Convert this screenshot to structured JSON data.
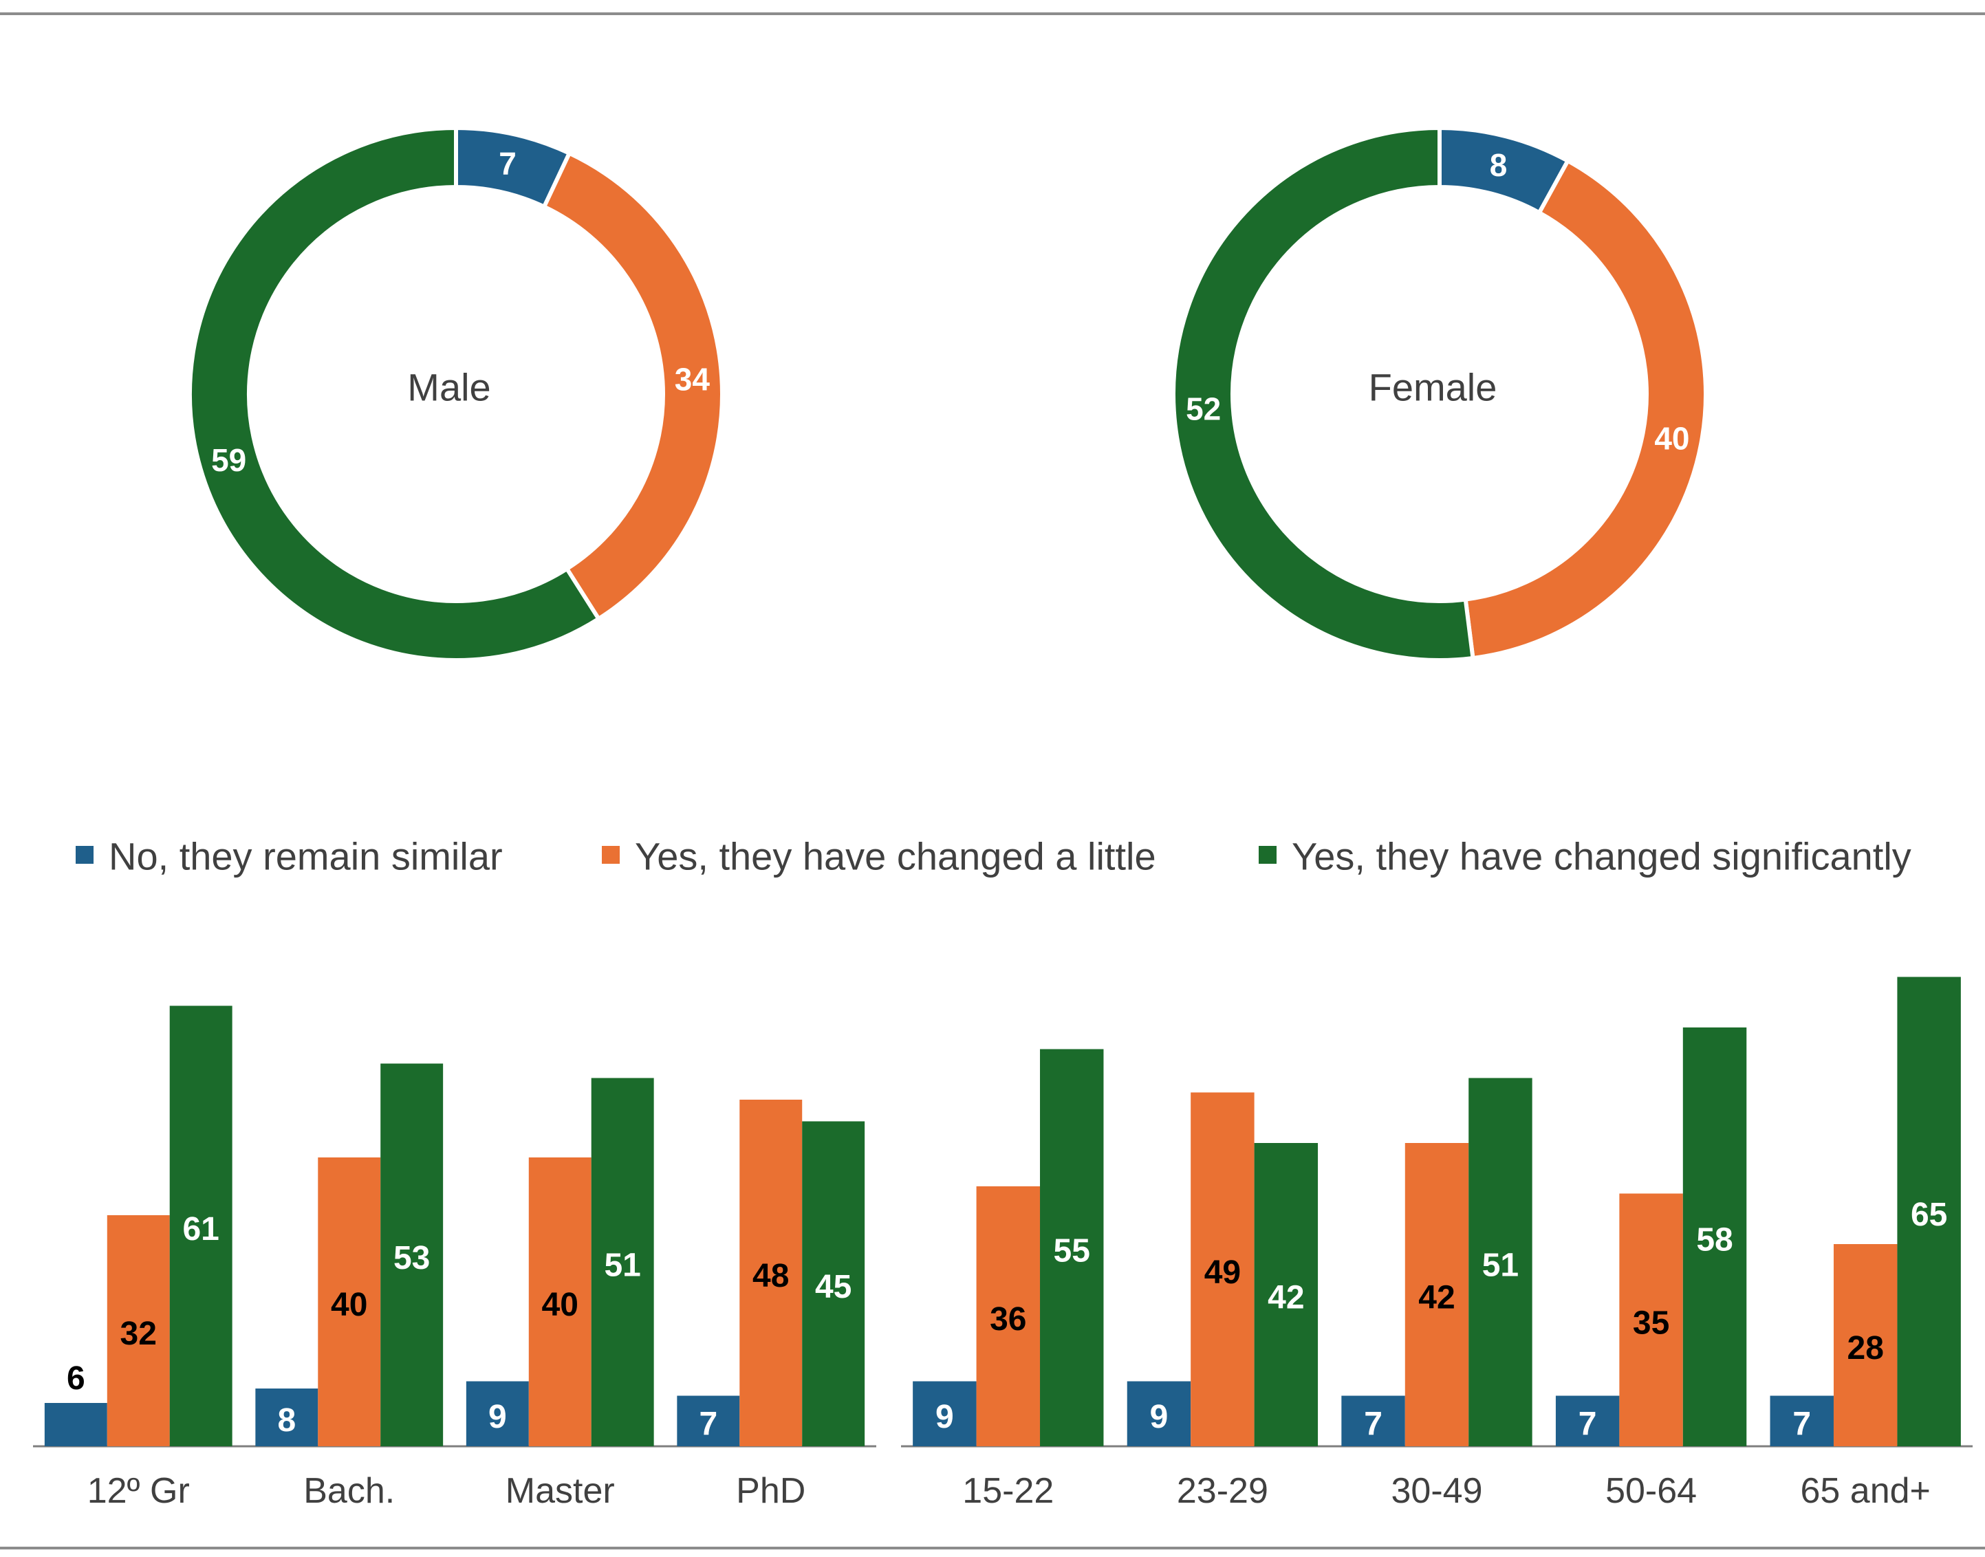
{
  "colors": {
    "no_similar": "#1f5f8b",
    "changed_little": "#ea7133",
    "changed_significantly": "#1b6b2b",
    "text_dark": "#000000",
    "text_light": "#ffffff",
    "axis": "#7f7f7f"
  },
  "legend": [
    {
      "label": "No, they remain similar",
      "color_key": "no_similar"
    },
    {
      "label": "Yes, they have changed a little",
      "color_key": "changed_little"
    },
    {
      "label": "Yes, they have changed significantly",
      "color_key": "changed_significantly"
    }
  ],
  "chart_data": [
    {
      "type": "pie",
      "variant": "donut",
      "title": "Male",
      "slices": [
        {
          "label": "No, they remain similar",
          "value": 7
        },
        {
          "label": "Yes, they have changed a little",
          "value": 34
        },
        {
          "label": "Yes, they have changed significantly",
          "value": 59
        }
      ]
    },
    {
      "type": "pie",
      "variant": "donut",
      "title": "Female",
      "slices": [
        {
          "label": "No, they remain similar",
          "value": 8
        },
        {
          "label": "Yes, they have changed a little",
          "value": 40
        },
        {
          "label": "Yes, they have changed significantly",
          "value": 52
        }
      ]
    },
    {
      "type": "bar",
      "title": "",
      "categories": [
        "12º Gr",
        "Bach.",
        "Master",
        "PhD"
      ],
      "series": [
        {
          "name": "No, they remain similar",
          "values": [
            6,
            8,
            9,
            7
          ]
        },
        {
          "name": "Yes, they have changed a little",
          "values": [
            32,
            40,
            40,
            48
          ]
        },
        {
          "name": "Yes, they have changed significantly",
          "values": [
            61,
            53,
            51,
            45
          ]
        }
      ],
      "ylim": [
        0,
        68
      ]
    },
    {
      "type": "bar",
      "title": "",
      "categories": [
        "15-22",
        "23-29",
        "30-49",
        "50-64",
        "65 and+"
      ],
      "series": [
        {
          "name": "No, they remain similar",
          "values": [
            9,
            9,
            7,
            7,
            7
          ]
        },
        {
          "name": "Yes, they have changed a little",
          "values": [
            36,
            49,
            42,
            35,
            28
          ]
        },
        {
          "name": "Yes, they have changed significantly",
          "values": [
            55,
            42,
            51,
            58,
            65
          ]
        }
      ],
      "ylim": [
        0,
        68
      ]
    }
  ]
}
